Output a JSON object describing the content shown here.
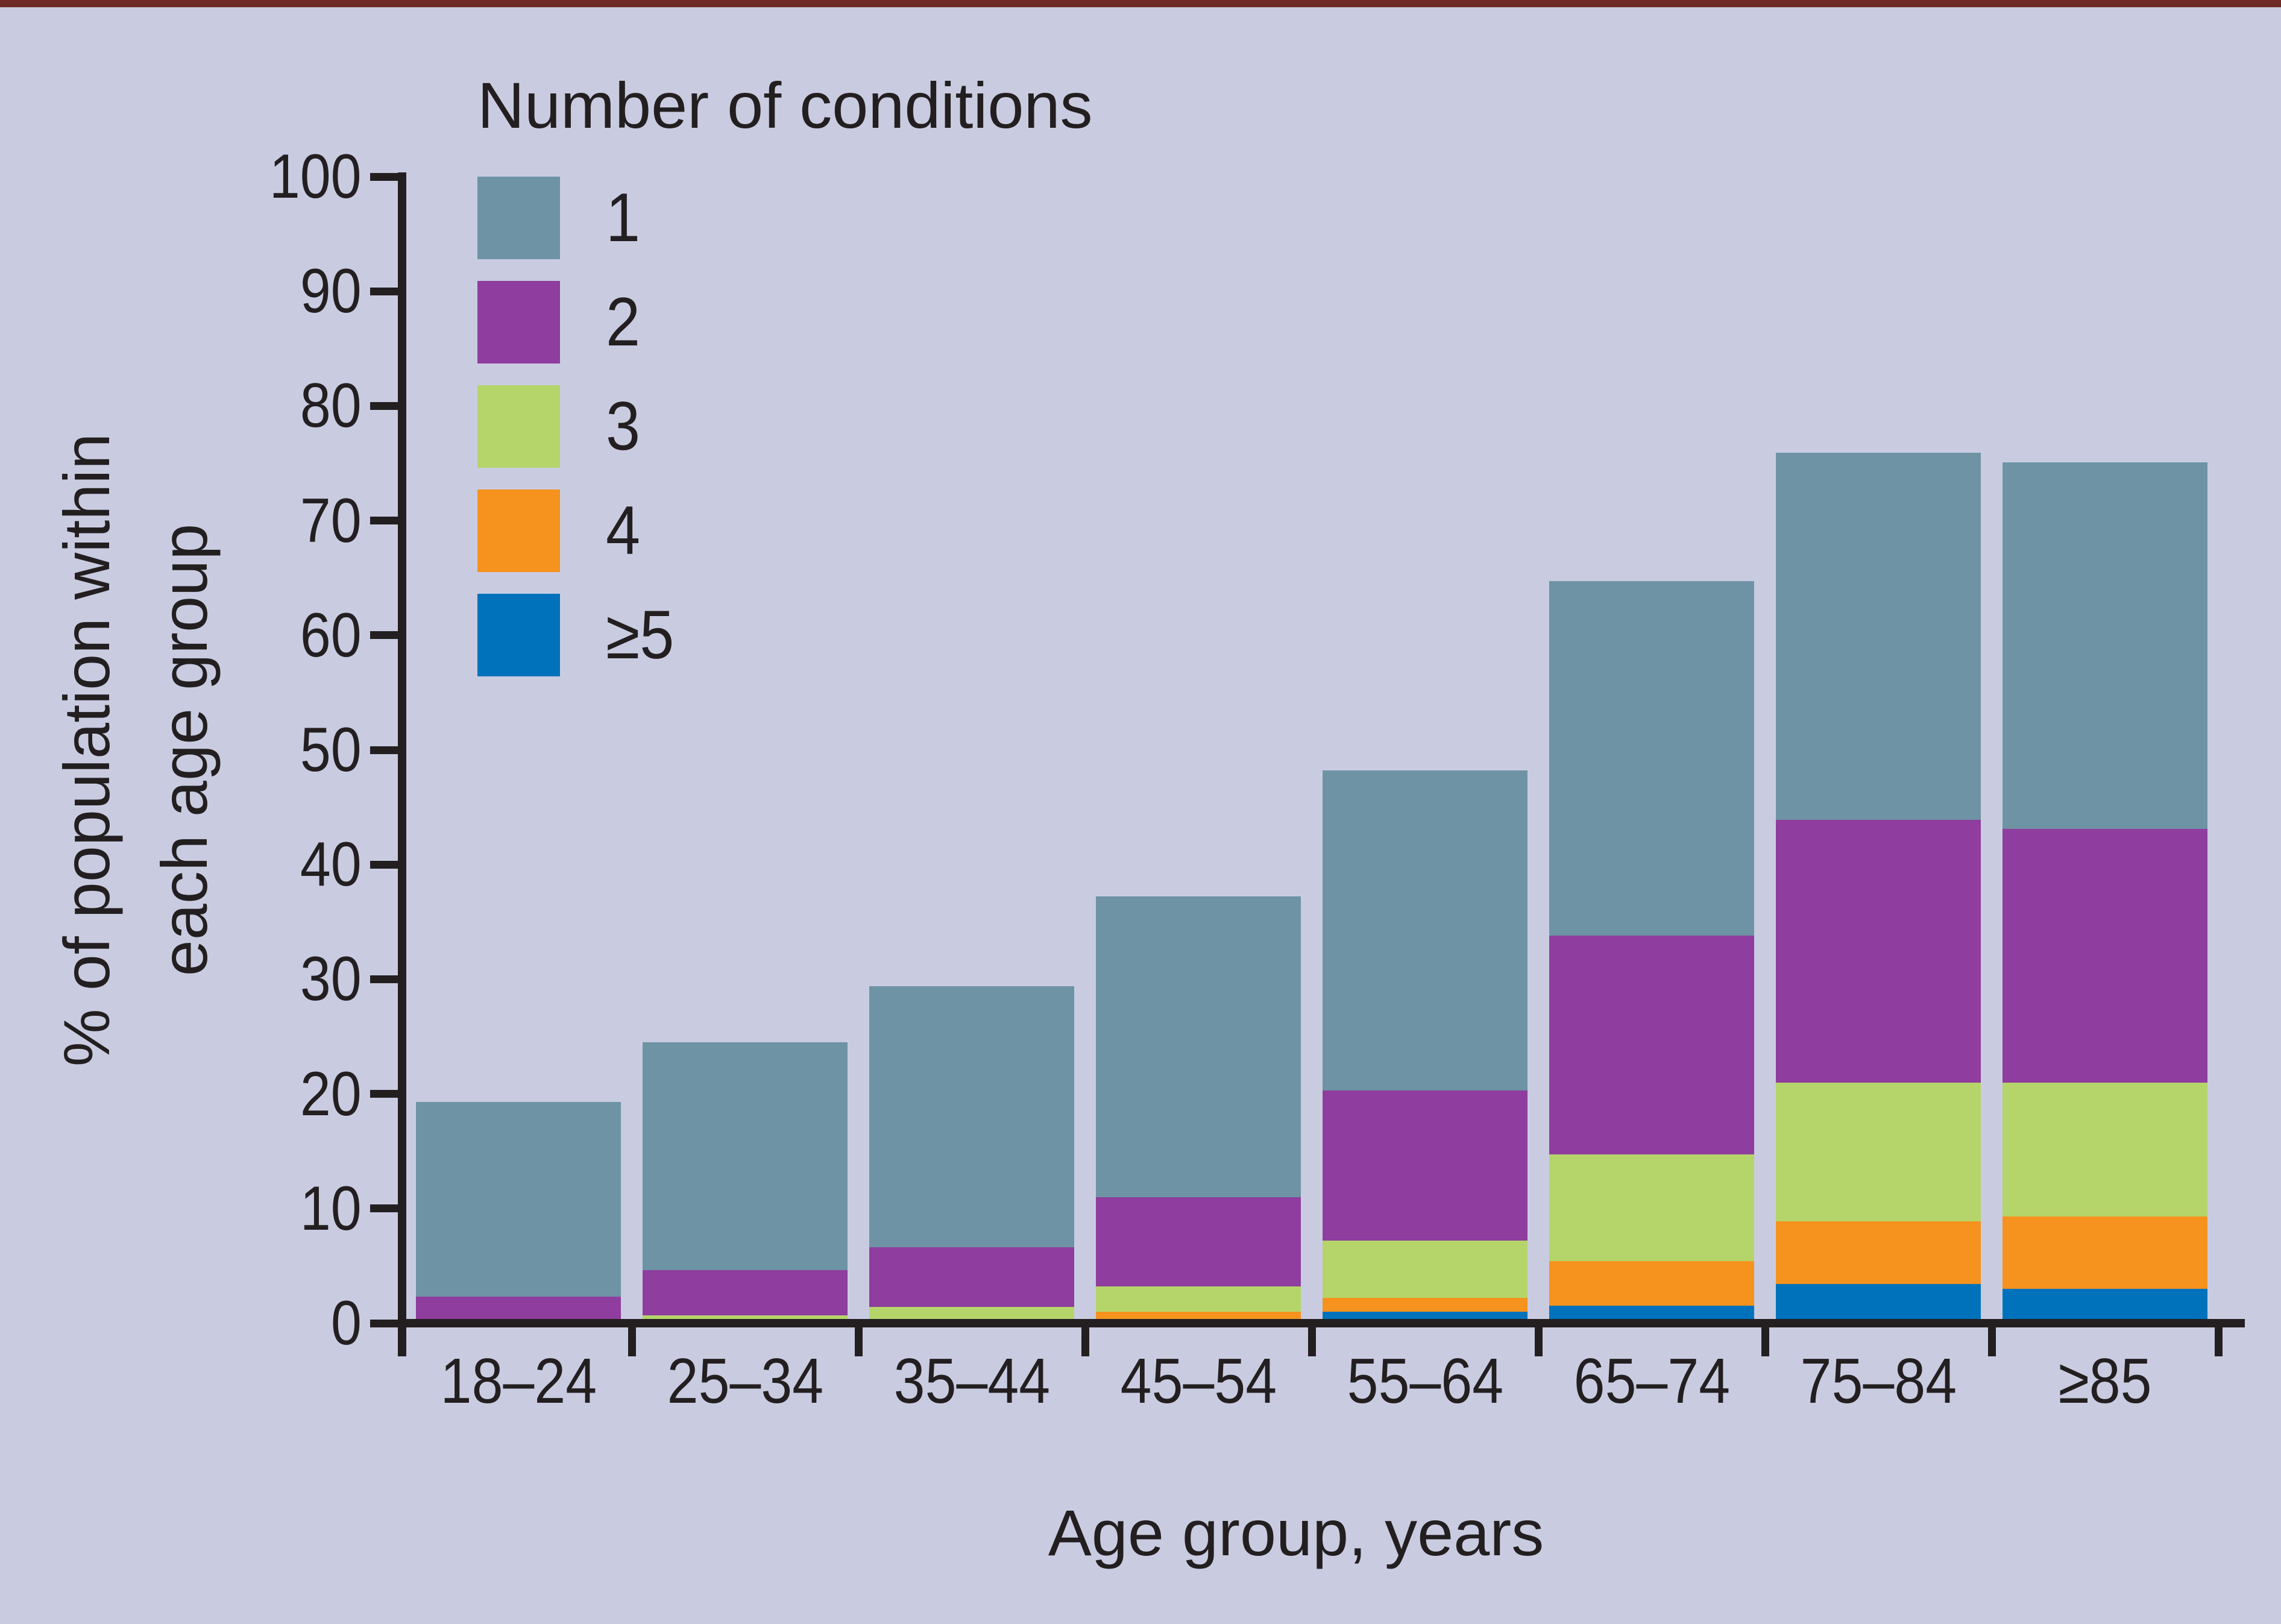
{
  "figure": {
    "top_border_color": "#6E2A25",
    "background_color": "#C9CCE1",
    "axis_color": "#231F20"
  },
  "legend": {
    "title": "Number of conditions"
  },
  "chart_data": {
    "type": "bar",
    "stacked": true,
    "legend_title": "Number of conditions",
    "xlabel": "Age group, years",
    "ylabel": "% of population within each age group",
    "ylabel_lines": [
      "% of population within",
      "each age group"
    ],
    "ylim": [
      0,
      100
    ],
    "y_ticks": [
      0,
      10,
      20,
      30,
      40,
      50,
      60,
      70,
      80,
      90,
      100
    ],
    "grid": false,
    "legend_position": "upper left inside plot",
    "categories": [
      "18–24",
      "25–34",
      "35–44",
      "45–54",
      "55–64",
      "65–74",
      "75–84",
      "≥85"
    ],
    "series": [
      {
        "name": "1",
        "color": "#6E93A4",
        "values": [
          17.0,
          19.9,
          22.8,
          26.2,
          27.9,
          30.9,
          32.0,
          32.0
        ]
      },
      {
        "name": "2",
        "color": "#8F3D9E",
        "values": [
          2.3,
          3.9,
          5.2,
          7.8,
          13.1,
          19.1,
          22.9,
          22.1
        ]
      },
      {
        "name": "3",
        "color": "#B5D56B",
        "values": [
          0,
          0.7,
          1.4,
          2.2,
          5.0,
          9.3,
          12.1,
          11.7
        ]
      },
      {
        "name": "4",
        "color": "#F6921E",
        "values": [
          0,
          0,
          0,
          1.0,
          1.2,
          3.9,
          5.5,
          6.3
        ]
      },
      {
        "name": "≥5",
        "color": "#0072BB",
        "values": [
          0,
          0,
          0,
          0,
          1.0,
          1.5,
          3.4,
          3.0
        ]
      }
    ],
    "stack_order_bottom_to_top": [
      "≥5",
      "4",
      "3",
      "2",
      "1"
    ],
    "bar_totals": [
      19.3,
      24.5,
      29.4,
      37.2,
      48.2,
      64.7,
      75.9,
      75.1
    ]
  }
}
